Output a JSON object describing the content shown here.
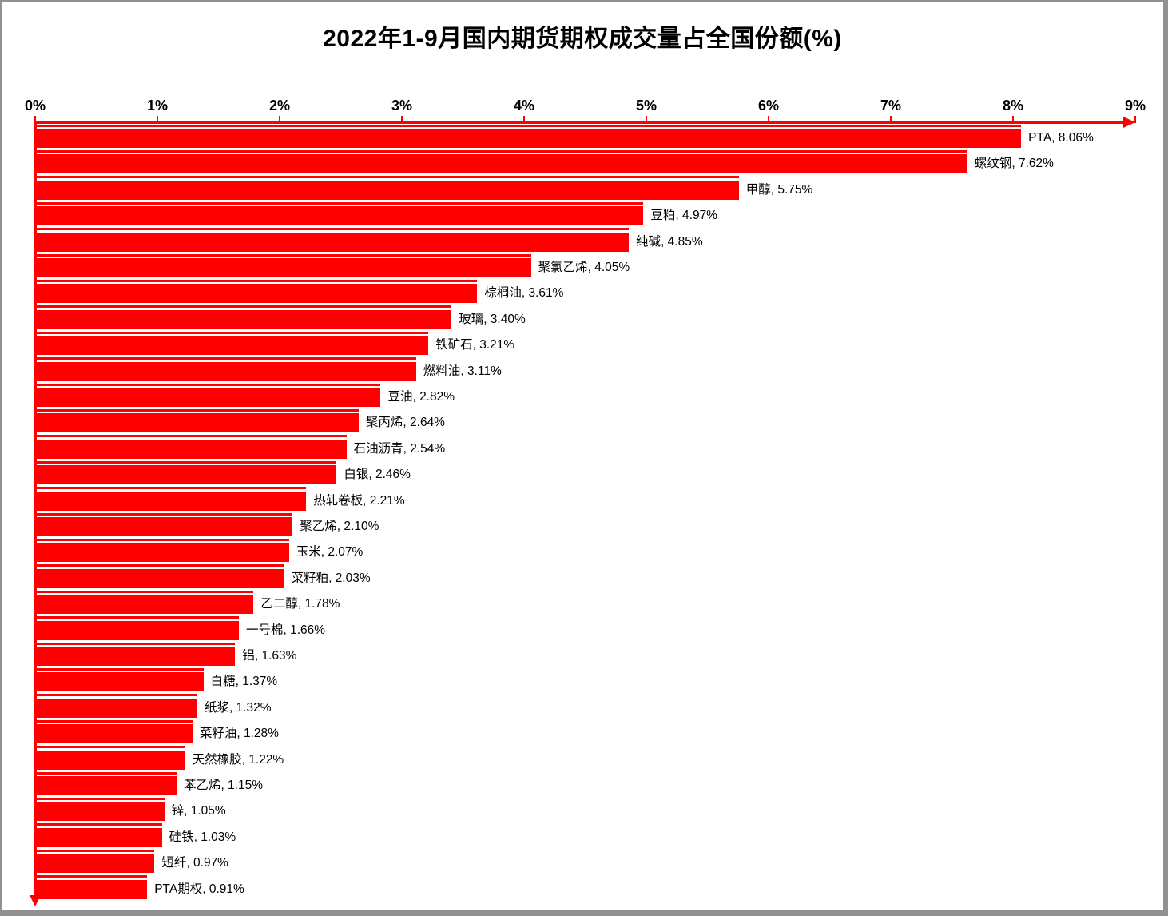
{
  "title": "2022年1-9月国内期货期权成交量占全国份额(%)",
  "colors": {
    "bar": "#ff0000",
    "axis": "#ff0000",
    "text": "#000000",
    "frame_border": "#919191",
    "background": "#ffffff"
  },
  "x_axis": {
    "tick_labels": [
      "0%",
      "1%",
      "2%",
      "3%",
      "4%",
      "5%",
      "6%",
      "7%",
      "8%",
      "9%"
    ],
    "min": 0,
    "max": 9,
    "unit": "%"
  },
  "chart_data": {
    "type": "bar",
    "orientation": "horizontal",
    "title": "2022年1-9月国内期货期权成交量占全国份额(%)",
    "xlabel": "",
    "ylabel": "",
    "xlim": [
      0,
      9
    ],
    "grid": false,
    "legend": "none",
    "bar_color": "#ff0000",
    "categories": [
      "PTA",
      "螺纹钢",
      "甲醇",
      "豆粕",
      "纯碱",
      "聚氯乙烯",
      "棕榈油",
      "玻璃",
      "铁矿石",
      "燃料油",
      "豆油",
      "聚丙烯",
      "石油沥青",
      "白银",
      "热轧卷板",
      "聚乙烯",
      "玉米",
      "菜籽粕",
      "乙二醇",
      "一号棉",
      "铝",
      "白糖",
      "纸浆",
      "菜籽油",
      "天然橡胶",
      "苯乙烯",
      "锌",
      "硅铁",
      "短纤",
      "PTA期权"
    ],
    "values": [
      8.06,
      7.62,
      5.75,
      4.97,
      4.85,
      4.05,
      3.61,
      3.4,
      3.21,
      3.11,
      2.82,
      2.64,
      2.54,
      2.46,
      2.21,
      2.1,
      2.07,
      2.03,
      1.78,
      1.66,
      1.63,
      1.37,
      1.32,
      1.28,
      1.22,
      1.15,
      1.05,
      1.03,
      0.97,
      0.91
    ],
    "value_display": [
      "8.06%",
      "7.62%",
      "5.75%",
      "4.97%",
      "4.85%",
      "4.05%",
      "3.61%",
      "3.40%",
      "3.21%",
      "3.11%",
      "2.82%",
      "2.64%",
      "2.54%",
      "2.46%",
      "2.21%",
      "2.10%",
      "2.07%",
      "2.03%",
      "1.78%",
      "1.66%",
      "1.63%",
      "1.37%",
      "1.32%",
      "1.28%",
      "1.22%",
      "1.15%",
      "1.05%",
      "1.03%",
      "0.97%",
      "0.91%"
    ],
    "data_labels": [
      "PTA, 8.06%",
      "螺纹钢, 7.62%",
      "甲醇, 5.75%",
      "豆粕, 4.97%",
      "纯碱, 4.85%",
      "聚氯乙烯, 4.05%",
      "棕榈油, 3.61%",
      "玻璃, 3.40%",
      "铁矿石, 3.21%",
      "燃料油, 3.11%",
      "豆油, 2.82%",
      "聚丙烯, 2.64%",
      "石油沥青, 2.54%",
      "白银, 2.46%",
      "热轧卷板, 2.21%",
      "聚乙烯, 2.10%",
      "玉米, 2.07%",
      "菜籽粕, 2.03%",
      "乙二醇, 1.78%",
      "一号棉, 1.66%",
      "铝, 1.63%",
      "白糖, 1.37%",
      "纸浆, 1.32%",
      "菜籽油, 1.28%",
      "天然橡胶, 1.22%",
      "苯乙烯, 1.15%",
      "锌, 1.05%",
      "硅铁, 1.03%",
      "短纤, 0.97%",
      "PTA期权, 0.91%"
    ]
  }
}
